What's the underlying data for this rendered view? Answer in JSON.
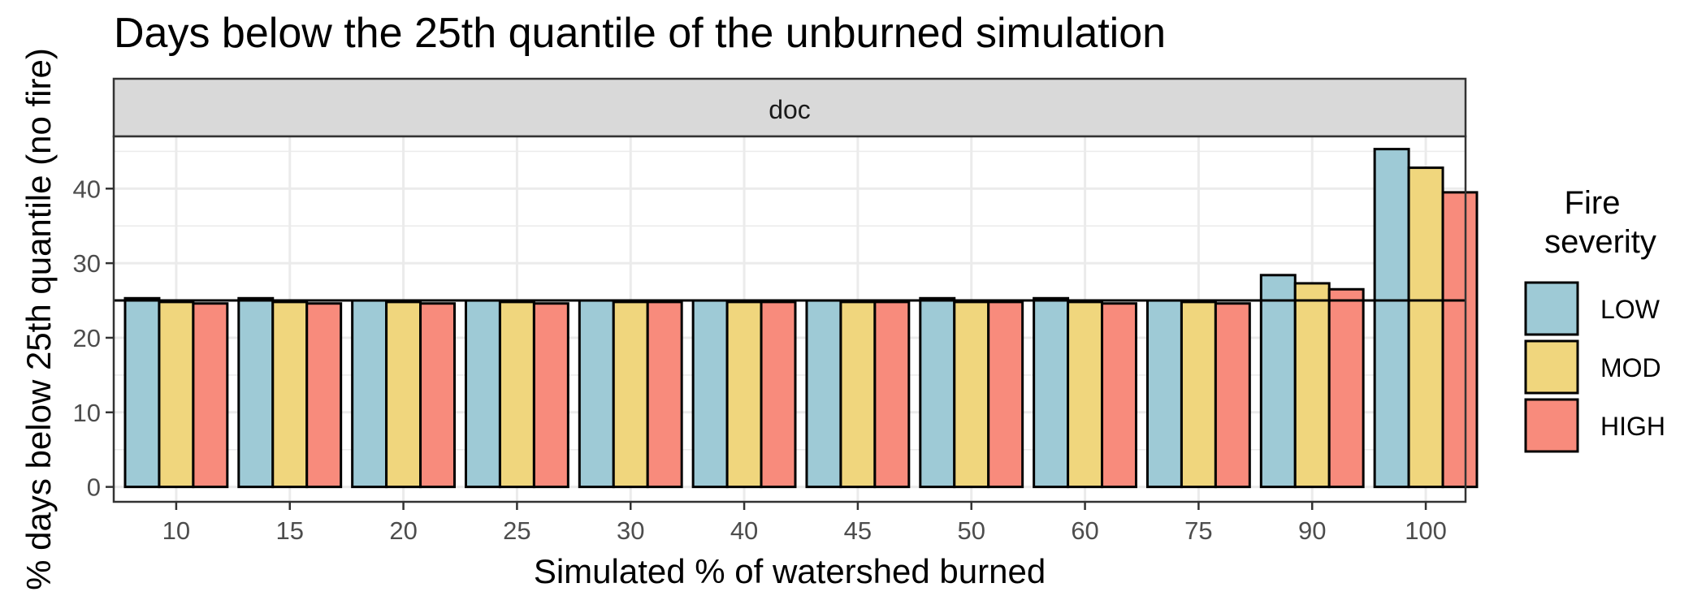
{
  "chart_data": {
    "type": "bar",
    "title": "Days below the 25th quantile of the unburned simulation",
    "panel_label": "doc",
    "xlabel": "Simulated % of watershed burned",
    "ylabel": "% days below 25th quantile (no fire)",
    "categories": [
      "10",
      "15",
      "20",
      "25",
      "30",
      "40",
      "45",
      "50",
      "60",
      "75",
      "90",
      "100"
    ],
    "ylim": [
      -2,
      47
    ],
    "yticks": [
      0,
      10,
      20,
      30,
      40
    ],
    "reference_line": 25,
    "grid": true,
    "legend": {
      "title": "Fire severity",
      "position": "right"
    },
    "series": [
      {
        "name": "LOW",
        "color": "#9ECAD6",
        "values": [
          25.3,
          25.3,
          25.0,
          25.0,
          25.0,
          25.0,
          25.0,
          25.3,
          25.3,
          25.0,
          28.4,
          45.3
        ]
      },
      {
        "name": "MOD",
        "color": "#F0D67D",
        "values": [
          24.8,
          24.8,
          24.8,
          24.8,
          24.8,
          24.8,
          24.8,
          24.8,
          24.8,
          24.8,
          27.3,
          42.8
        ]
      },
      {
        "name": "HIGH",
        "color": "#F88B7C",
        "values": [
          24.6,
          24.6,
          24.6,
          24.6,
          24.8,
          24.8,
          24.8,
          24.8,
          24.6,
          24.6,
          26.5,
          39.5
        ]
      }
    ]
  }
}
